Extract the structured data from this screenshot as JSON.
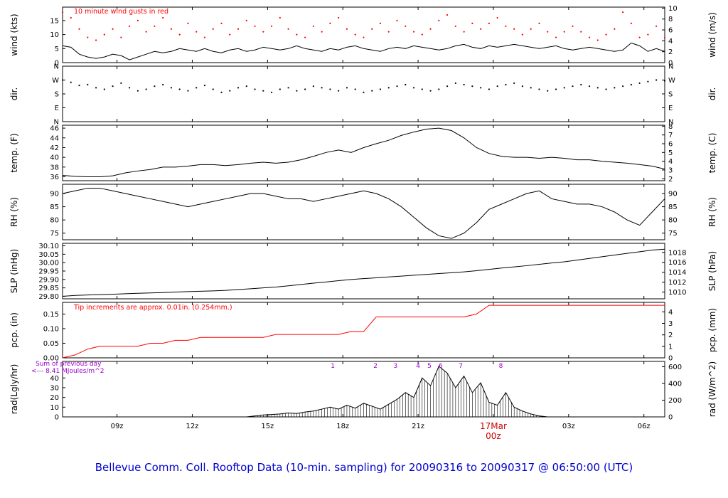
{
  "title": "Bellevue Comm. Coll. Rooftop Data (10-min. sampling) for 20090316  to  20090317 @ 06:50:00  (UTC)",
  "colors": {
    "line": "#000000",
    "red": "#ff0000",
    "date_red": "#cc0000",
    "purple": "#9900cc",
    "title_blue": "#0000d0"
  },
  "annotations": {
    "gust_note": "10  minute wind gusts in red",
    "tip_note": "Tip increments are approx. 0.01in. (0.254mm.)",
    "sum_note_line1": "Sum of previous day",
    "sum_note_line2": "<--- 8.41 MJoules/m^2"
  },
  "x_axis": {
    "min": 6.83,
    "max": 30.83,
    "ticks": [
      {
        "hour": 9,
        "label": "09z"
      },
      {
        "hour": 12,
        "label": "12z"
      },
      {
        "hour": 15,
        "label": "15z"
      },
      {
        "hour": 18,
        "label": "18z"
      },
      {
        "hour": 21,
        "label": "21z"
      },
      {
        "hour": 24,
        "label": ""
      },
      {
        "hour": 27,
        "label": "03z"
      },
      {
        "hour": 30,
        "label": "06z"
      }
    ],
    "date_break": {
      "hour": 24,
      "line1": "17Mar",
      "line2": "00z",
      "color": "#cc0000"
    }
  },
  "chart_data": [
    {
      "id": "wind",
      "type": "line",
      "ylabel_left": "wind (kts)",
      "ylabel_right": "wind (m/s)",
      "ylim": [
        0,
        19.8
      ],
      "yticks_left": [
        [
          0,
          "0"
        ],
        [
          5,
          "5"
        ],
        [
          10,
          "10"
        ],
        [
          15,
          "15"
        ]
      ],
      "yticks_right": [
        [
          0,
          "0"
        ],
        [
          3.89,
          "2"
        ],
        [
          7.78,
          "4"
        ],
        [
          11.66,
          "6"
        ],
        [
          15.55,
          "8"
        ],
        [
          19.44,
          "10"
        ]
      ],
      "series": [
        {
          "name": "wind speed (kts)",
          "style": "line",
          "color": "#000000",
          "x0": 6.83,
          "dx": 0.3333,
          "y": [
            6.0,
            5.5,
            3.0,
            2.0,
            1.5,
            2.0,
            3.0,
            2.5,
            1.0,
            2.0,
            3.0,
            4.0,
            3.5,
            4.0,
            5.0,
            4.5,
            4.0,
            5.0,
            4.0,
            3.5,
            4.5,
            5.0,
            4.0,
            4.5,
            5.5,
            5.0,
            4.5,
            5.0,
            6.0,
            5.0,
            4.5,
            4.0,
            5.0,
            4.5,
            5.5,
            6.0,
            5.0,
            4.5,
            4.0,
            5.0,
            5.5,
            5.0,
            6.0,
            5.5,
            5.0,
            4.5,
            5.0,
            6.0,
            6.5,
            5.5,
            5.0,
            6.0,
            5.5,
            6.0,
            6.5,
            6.0,
            5.5,
            5.0,
            5.5,
            6.0,
            5.0,
            4.5,
            5.0,
            5.5,
            5.0,
            4.5,
            4.0,
            4.5,
            7.0,
            6.0,
            4.0,
            5.0,
            4.0
          ]
        },
        {
          "name": "10-minute wind gusts (kts)",
          "style": "dots",
          "color": "#ff0000",
          "x0": 6.83,
          "dx": 0.3333,
          "y": [
            18,
            16,
            12,
            9,
            8,
            10,
            12,
            9,
            13,
            15,
            11,
            13,
            16,
            12,
            10,
            14,
            11,
            9,
            12,
            14,
            10,
            12,
            15,
            13,
            11,
            13,
            16,
            12,
            10,
            9,
            13,
            11,
            14,
            16,
            12,
            10,
            9,
            12,
            14,
            11,
            15,
            13,
            11,
            10,
            12,
            15,
            17,
            13,
            11,
            14,
            12,
            14,
            16,
            13,
            12,
            10,
            12,
            14,
            11,
            9,
            11,
            13,
            11,
            9,
            8,
            10,
            12,
            18,
            14,
            9,
            10,
            13,
            9
          ]
        }
      ]
    },
    {
      "id": "dir",
      "type": "scatter",
      "ylabel_left": "dir.",
      "ylabel_right": "dir.",
      "ylim": [
        0,
        360
      ],
      "yticks_left": [
        [
          0,
          "N"
        ],
        [
          90,
          "E"
        ],
        [
          180,
          "S"
        ],
        [
          270,
          "W"
        ],
        [
          360,
          "N"
        ]
      ],
      "yticks_right": [
        [
          0,
          "N"
        ],
        [
          90,
          "E"
        ],
        [
          180,
          "S"
        ],
        [
          270,
          "W"
        ],
        [
          360,
          "N"
        ]
      ],
      "series": [
        {
          "name": "wind direction (deg)",
          "style": "dots",
          "color": "#000000",
          "x0": 6.83,
          "dx": 0.3333,
          "y": [
            270,
            255,
            235,
            240,
            220,
            210,
            230,
            250,
            220,
            200,
            210,
            230,
            240,
            220,
            210,
            200,
            220,
            235,
            210,
            190,
            200,
            220,
            230,
            210,
            200,
            190,
            210,
            220,
            200,
            210,
            230,
            220,
            210,
            200,
            220,
            210,
            190,
            200,
            210,
            220,
            230,
            240,
            220,
            210,
            200,
            210,
            230,
            250,
            240,
            230,
            220,
            210,
            230,
            240,
            250,
            230,
            220,
            210,
            200,
            210,
            220,
            230,
            240,
            230,
            220,
            210,
            220,
            230,
            240,
            250,
            260,
            270,
            265
          ]
        }
      ]
    },
    {
      "id": "temp",
      "type": "line",
      "ylabel_left": "temp. (F)",
      "ylabel_right": "temp. (C)",
      "ylim": [
        35.2,
        46.6
      ],
      "yticks_left": [
        [
          36,
          "36"
        ],
        [
          38,
          "38"
        ],
        [
          40,
          "40"
        ],
        [
          42,
          "42"
        ],
        [
          44,
          "44"
        ],
        [
          46,
          "46"
        ]
      ],
      "yticks_right": [
        [
          35.6,
          "2"
        ],
        [
          37.4,
          "3"
        ],
        [
          39.2,
          "4"
        ],
        [
          41.0,
          "5"
        ],
        [
          42.8,
          "6"
        ],
        [
          44.6,
          "7"
        ],
        [
          46.4,
          "8"
        ]
      ],
      "series": [
        {
          "name": "temperature (F)",
          "style": "line",
          "color": "#000000",
          "x0": 6.83,
          "dx": 0.5,
          "y": [
            36.3,
            36.1,
            36.0,
            36.0,
            36.2,
            36.8,
            37.2,
            37.5,
            38.0,
            38.0,
            38.2,
            38.5,
            38.5,
            38.3,
            38.5,
            38.8,
            39.0,
            38.8,
            39.0,
            39.5,
            40.2,
            41.0,
            41.5,
            41.0,
            42.0,
            42.8,
            43.5,
            44.5,
            45.2,
            45.8,
            46.0,
            45.5,
            44.0,
            42.0,
            40.8,
            40.2,
            40.0,
            40.0,
            39.8,
            40.0,
            39.8,
            39.5,
            39.5,
            39.2,
            39.0,
            38.8,
            38.5,
            38.2,
            37.6
          ]
        }
      ]
    },
    {
      "id": "rh",
      "type": "line",
      "ylabel_left": "RH (%)",
      "ylabel_right": "RH (%)",
      "ylim": [
        72.5,
        93.5
      ],
      "yticks_left": [
        [
          75,
          "75"
        ],
        [
          80,
          "80"
        ],
        [
          85,
          "85"
        ],
        [
          90,
          "90"
        ]
      ],
      "yticks_right": [
        [
          75,
          "75"
        ],
        [
          80,
          "80"
        ],
        [
          85,
          "85"
        ],
        [
          90,
          "90"
        ]
      ],
      "series": [
        {
          "name": "relative humidity (%)",
          "style": "line",
          "color": "#000000",
          "x0": 6.83,
          "dx": 0.5,
          "y": [
            90,
            91,
            92,
            92,
            91,
            90,
            89,
            88,
            87,
            86,
            85,
            86,
            87,
            88,
            89,
            90,
            90,
            89,
            88,
            88,
            87,
            88,
            89,
            90,
            91,
            90,
            88,
            85,
            81,
            77,
            74,
            73,
            75,
            79,
            84,
            86,
            88,
            90,
            91,
            88,
            87,
            86,
            86,
            85,
            83,
            80,
            78,
            83,
            88
          ]
        }
      ]
    },
    {
      "id": "slp",
      "type": "line",
      "ylabel_left": "SLP (inHg)",
      "ylabel_right": "SLP (hPa)",
      "ylim": [
        29.785,
        30.115
      ],
      "yticks_left": [
        [
          29.8,
          "29.80"
        ],
        [
          29.85,
          "29.85"
        ],
        [
          29.9,
          "29.90"
        ],
        [
          29.95,
          "29.95"
        ],
        [
          30.0,
          "30.00"
        ],
        [
          30.05,
          "30.05"
        ],
        [
          30.1,
          "30.10"
        ]
      ],
      "yticks_right": [
        [
          29.825,
          "1010"
        ],
        [
          29.884,
          "1012"
        ],
        [
          29.943,
          "1014"
        ],
        [
          30.002,
          "1016"
        ],
        [
          30.061,
          "1018"
        ]
      ],
      "series": [
        {
          "name": "sea-level pressure (inHg)",
          "style": "line",
          "color": "#000000",
          "x0": 6.83,
          "dx": 0.5,
          "y": [
            29.8,
            29.805,
            29.808,
            29.81,
            29.812,
            29.815,
            29.818,
            29.82,
            29.822,
            29.825,
            29.828,
            29.83,
            29.832,
            29.835,
            29.84,
            29.845,
            29.85,
            29.855,
            29.862,
            29.87,
            29.878,
            29.885,
            29.893,
            29.9,
            29.905,
            29.91,
            29.915,
            29.92,
            29.925,
            29.93,
            29.935,
            29.94,
            29.945,
            29.952,
            29.96,
            29.968,
            29.975,
            29.982,
            29.99,
            29.998,
            30.005,
            30.015,
            30.025,
            30.035,
            30.045,
            30.055,
            30.065,
            30.075,
            30.08
          ]
        }
      ]
    },
    {
      "id": "pcp",
      "type": "line",
      "ylabel_left": "pcp. (in)",
      "ylabel_right": "pcp. (mm)",
      "ylim": [
        0,
        0.19
      ],
      "yticks_left": [
        [
          0.0,
          "0.00"
        ],
        [
          0.05,
          "0.05"
        ],
        [
          0.1,
          "0.10"
        ],
        [
          0.15,
          "0.15"
        ]
      ],
      "yticks_right": [
        [
          0,
          "0"
        ],
        [
          0.0394,
          "1"
        ],
        [
          0.0787,
          "2"
        ],
        [
          0.1181,
          "3"
        ],
        [
          0.1575,
          "4"
        ]
      ],
      "series": [
        {
          "name": "accumulated precipitation (in)",
          "style": "line",
          "color": "#ff0000",
          "x0": 6.83,
          "dx": 0.5,
          "y": [
            0.0,
            0.01,
            0.03,
            0.04,
            0.04,
            0.04,
            0.04,
            0.05,
            0.05,
            0.06,
            0.06,
            0.07,
            0.07,
            0.07,
            0.07,
            0.07,
            0.07,
            0.08,
            0.08,
            0.08,
            0.08,
            0.08,
            0.08,
            0.09,
            0.09,
            0.14,
            0.14,
            0.14,
            0.14,
            0.14,
            0.14,
            0.14,
            0.14,
            0.15,
            0.18,
            0.18,
            0.18,
            0.18,
            0.18,
            0.18,
            0.18,
            0.18,
            0.18,
            0.18,
            0.18,
            0.18,
            0.18,
            0.18,
            0.18
          ]
        }
      ]
    },
    {
      "id": "rad",
      "type": "area",
      "ylabel_left": "rad(Lgly/hr)",
      "ylabel_right": "rad (W/m^2)",
      "ylim": [
        0,
        57
      ],
      "yticks_left": [
        [
          0,
          "0"
        ],
        [
          10,
          "10"
        ],
        [
          20,
          "20"
        ],
        [
          30,
          "30"
        ],
        [
          40,
          "40"
        ]
      ],
      "yticks_right": [
        [
          0,
          "0"
        ],
        [
          17.2,
          "200"
        ],
        [
          34.4,
          "400"
        ],
        [
          51.6,
          "600"
        ]
      ],
      "milestones": [
        {
          "label": "1",
          "hour": 17.6
        },
        {
          "label": "2",
          "hour": 19.3
        },
        {
          "label": "3",
          "hour": 20.1
        },
        {
          "label": "4",
          "hour": 21.0
        },
        {
          "label": "5",
          "hour": 21.45
        },
        {
          "label": "6",
          "hour": 21.9
        },
        {
          "label": "7",
          "hour": 22.7
        },
        {
          "label": "8",
          "hour": 24.3
        }
      ],
      "series": [
        {
          "name": "solar radiation (Lgly/hr)",
          "style": "hatch",
          "color": "#000000",
          "x0": 6.83,
          "dx": 0.3333,
          "y": [
            0,
            0,
            0,
            0,
            0,
            0,
            0,
            0,
            0,
            0,
            0,
            0,
            0,
            0,
            0,
            0,
            0,
            0,
            0,
            0,
            0,
            0,
            0,
            1,
            2,
            2.5,
            3,
            4,
            3.5,
            5,
            6,
            8,
            10,
            8,
            12,
            9,
            14,
            11,
            8,
            13,
            18,
            25,
            20,
            40,
            32,
            52,
            45,
            30,
            42,
            25,
            35,
            15,
            12,
            25,
            10,
            6,
            3,
            1,
            0,
            0,
            0,
            0,
            0,
            0,
            0,
            0,
            0,
            0,
            0,
            0,
            0,
            0,
            0
          ]
        }
      ]
    }
  ]
}
